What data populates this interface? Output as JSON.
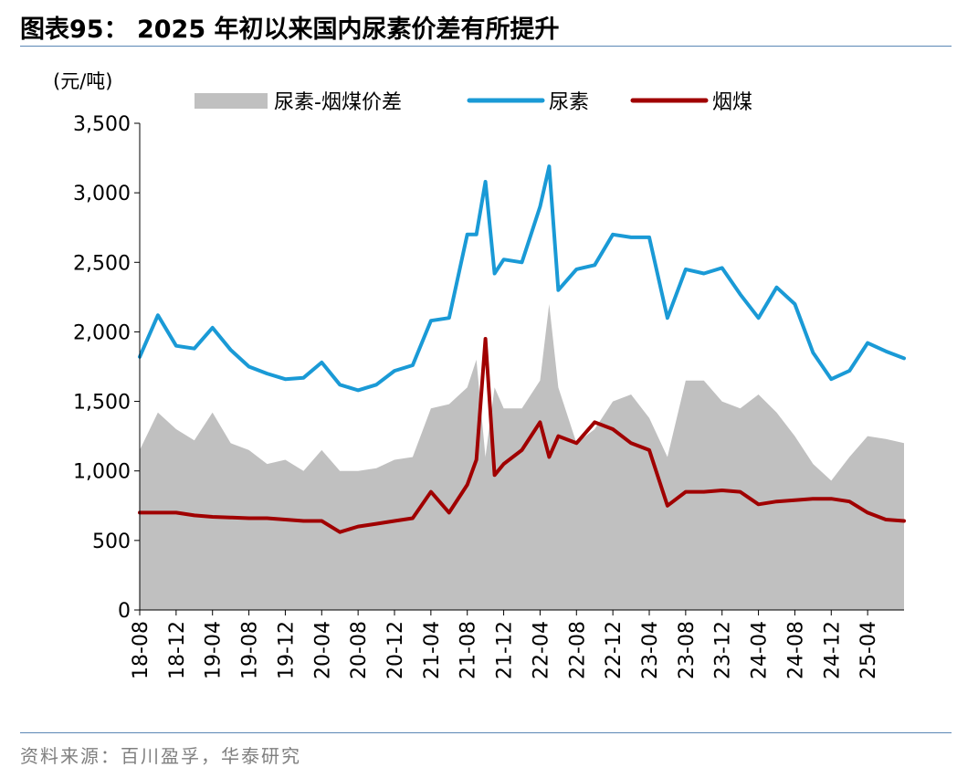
{
  "header": {
    "title": "图表95：  2025 年初以来国内尿素价差有所提升"
  },
  "footer": {
    "source": "资料来源：百川盈孚，华泰研究"
  },
  "colors": {
    "spread": "#c0c0c0",
    "urea": "#1a9ad6",
    "coal": "#a00000",
    "rule": "#5b87b5",
    "source_text": "#7f7f7f"
  },
  "chart_data": {
    "type": "area",
    "title": "",
    "unit_label": "(元/吨)",
    "ylim": [
      0,
      3500
    ],
    "yticks": [
      0,
      500,
      1000,
      1500,
      2000,
      2500,
      3000,
      3500
    ],
    "ytick_labels": [
      "0",
      "500",
      "1,000",
      "1,500",
      "2,000",
      "2,500",
      "3,000",
      "3,500"
    ],
    "xlim": [
      "2018-08",
      "2025-08"
    ],
    "xtick_labels": [
      "18-08",
      "18-12",
      "19-04",
      "19-08",
      "19-12",
      "20-04",
      "20-08",
      "20-12",
      "21-04",
      "21-08",
      "21-12",
      "22-04",
      "22-08",
      "22-12",
      "23-04",
      "23-08",
      "23-12",
      "24-04",
      "24-08",
      "24-12",
      "25-04"
    ],
    "legend_placement": "top",
    "grid": false,
    "x": [
      "2018-08",
      "2018-10",
      "2018-12",
      "2019-02",
      "2019-04",
      "2019-06",
      "2019-08",
      "2019-10",
      "2019-12",
      "2020-02",
      "2020-04",
      "2020-06",
      "2020-08",
      "2020-10",
      "2020-12",
      "2021-02",
      "2021-04",
      "2021-06",
      "2021-08",
      "2021-09",
      "2021-10",
      "2021-11",
      "2021-12",
      "2022-02",
      "2022-04",
      "2022-05",
      "2022-06",
      "2022-08",
      "2022-10",
      "2022-12",
      "2023-02",
      "2023-04",
      "2023-06",
      "2023-08",
      "2023-10",
      "2023-12",
      "2024-02",
      "2024-04",
      "2024-06",
      "2024-08",
      "2024-10",
      "2024-12",
      "2025-02",
      "2025-04",
      "2025-06",
      "2025-08"
    ],
    "series": [
      {
        "name": "尿素-烟煤价差",
        "type": "area",
        "values": [
          1150,
          1420,
          1300,
          1220,
          1420,
          1200,
          1150,
          1050,
          1080,
          1000,
          1150,
          1000,
          1000,
          1020,
          1080,
          1100,
          1450,
          1480,
          1600,
          1800,
          1100,
          1600,
          1450,
          1450,
          1650,
          2200,
          1600,
          1200,
          1300,
          1500,
          1550,
          1380,
          1100,
          1650,
          1650,
          1500,
          1450,
          1550,
          1420,
          1250,
          1050,
          930,
          1100,
          1250,
          1230,
          1200
        ]
      },
      {
        "name": "尿素",
        "type": "line",
        "values": [
          1820,
          2120,
          1900,
          1880,
          2030,
          1870,
          1750,
          1700,
          1660,
          1670,
          1780,
          1620,
          1580,
          1620,
          1720,
          1760,
          2080,
          2100,
          2700,
          2700,
          3080,
          2420,
          2520,
          2500,
          2900,
          3190,
          2300,
          2450,
          2480,
          2700,
          2680,
          2680,
          2100,
          2450,
          2420,
          2460,
          2270,
          2100,
          2320,
          2200,
          1850,
          1660,
          1720,
          1920,
          1860,
          1810
        ]
      },
      {
        "name": "烟煤",
        "type": "line",
        "values": [
          700,
          700,
          700,
          680,
          670,
          665,
          660,
          660,
          650,
          640,
          640,
          560,
          600,
          620,
          640,
          660,
          850,
          700,
          900,
          1080,
          1950,
          970,
          1050,
          1150,
          1350,
          1100,
          1250,
          1200,
          1350,
          1300,
          1200,
          1150,
          750,
          850,
          850,
          860,
          850,
          760,
          780,
          790,
          800,
          800,
          780,
          700,
          650,
          640
        ]
      }
    ]
  }
}
